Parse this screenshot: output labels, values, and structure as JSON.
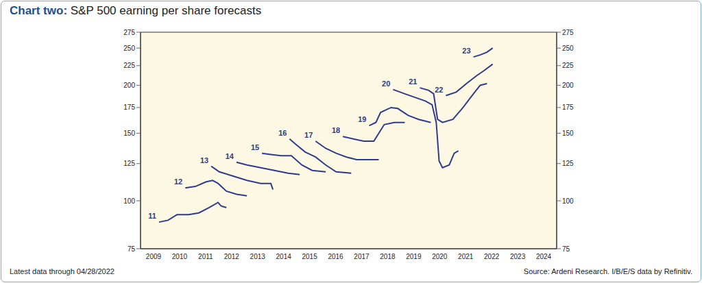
{
  "chart_data": {
    "type": "line",
    "title": "Chart two: S&P 500 earning per share forecasts",
    "annotations": [
      "Latest data through 04/28/2022",
      "Source: Ardeni Research. I/B/E/S data by Refinitiv."
    ],
    "log": "y",
    "xlim": [
      2009,
      2025
    ],
    "xticks": [
      {
        "value": 2009.5,
        "label": "2009"
      },
      {
        "value": 2010.5,
        "label": "2010"
      },
      {
        "value": 2011.5,
        "label": "2011"
      },
      {
        "value": 2012.5,
        "label": "2012"
      },
      {
        "value": 2013.5,
        "label": "2013"
      },
      {
        "value": 2014.5,
        "label": "2014"
      },
      {
        "value": 2015.5,
        "label": "2015"
      },
      {
        "value": 2016.5,
        "label": "2016"
      },
      {
        "value": 2017.5,
        "label": "2017"
      },
      {
        "value": 2018.5,
        "label": "2018"
      },
      {
        "value": 2019.5,
        "label": "2019"
      },
      {
        "value": 2020.5,
        "label": "2020"
      },
      {
        "value": 2021.5,
        "label": "2021"
      },
      {
        "value": 2022.5,
        "label": "2022"
      },
      {
        "value": 2023.5,
        "label": "2023"
      },
      {
        "value": 2024.5,
        "label": "2024"
      }
    ],
    "ylim": [
      75,
      275
    ],
    "yticks": [
      75,
      100,
      125,
      150,
      175,
      200,
      225,
      250,
      275
    ],
    "series": [
      {
        "name": "11",
        "color": "#2e3a8c",
        "x": [
          2009.71,
          2010.06,
          2010.4,
          2010.85,
          2011.24,
          2011.64,
          2011.98,
          2012.09,
          2012.3
        ],
        "values": [
          88,
          89,
          92,
          92,
          93,
          96,
          99,
          97,
          96
        ]
      },
      {
        "name": "12",
        "color": "#2e3a8c",
        "x": [
          2010.72,
          2011.11,
          2011.51,
          2011.77,
          2011.98,
          2012.3,
          2012.69,
          2013.09
        ],
        "values": [
          108,
          109,
          112,
          113,
          111,
          106,
          104,
          103
        ]
      },
      {
        "name": "13",
        "color": "#2e3a8c",
        "x": [
          2011.72,
          2012.03,
          2012.56,
          2013.09,
          2013.62,
          2014.01,
          2014.09
        ],
        "values": [
          123,
          119,
          116,
          113,
          111,
          111,
          107
        ]
      },
      {
        "name": "14",
        "color": "#2e3a8c",
        "x": [
          2012.69,
          2013.09,
          2013.62,
          2014.15,
          2014.67,
          2015.12
        ],
        "values": [
          126,
          124,
          122,
          120,
          118,
          117
        ]
      },
      {
        "name": "15",
        "color": "#2e3a8c",
        "x": [
          2013.67,
          2014.01,
          2014.41,
          2014.8,
          2015.2,
          2015.6,
          2016.12
        ],
        "values": [
          133,
          132,
          131,
          131,
          124,
          120,
          119
        ]
      },
      {
        "name": "16",
        "color": "#2e3a8c",
        "x": [
          2014.73,
          2014.99,
          2015.33,
          2015.73,
          2016.12,
          2016.52,
          2017.1
        ],
        "values": [
          145,
          140,
          134,
          130,
          124,
          119,
          118
        ]
      },
      {
        "name": "17",
        "color": "#2e3a8c",
        "x": [
          2015.73,
          2016.12,
          2016.52,
          2016.92,
          2017.31,
          2017.71,
          2018.16
        ],
        "values": [
          143,
          137,
          133,
          130,
          128,
          128,
          128
        ]
      },
      {
        "name": "18",
        "color": "#2e3a8c",
        "x": [
          2016.78,
          2017.18,
          2017.58,
          2017.97,
          2018.16,
          2018.37,
          2018.76,
          2019.16
        ],
        "values": [
          147,
          145,
          143,
          143,
          150,
          158,
          160,
          160
        ]
      },
      {
        "name": "19",
        "color": "#2e3a8c",
        "x": [
          2017.79,
          2018.05,
          2018.23,
          2018.63,
          2018.89,
          2019.29,
          2019.69,
          2020.16
        ],
        "values": [
          157,
          160,
          170,
          175,
          174,
          167,
          163,
          160
        ]
      },
      {
        "name": "20",
        "color": "#2e3a8c",
        "x": [
          2018.71,
          2019.16,
          2019.55,
          2019.95,
          2020.21,
          2020.37,
          2020.48,
          2020.61,
          2020.87,
          2021.06,
          2021.22
        ],
        "values": [
          195,
          190,
          186,
          182,
          178,
          160,
          127,
          122,
          124,
          133,
          135
        ]
      },
      {
        "name": "21",
        "color": "#2e3a8c",
        "x": [
          2019.74,
          2020.08,
          2020.27,
          2020.42,
          2020.61,
          2021.01,
          2021.4,
          2021.8,
          2022.06,
          2022.32
        ],
        "values": [
          197,
          194,
          190,
          163,
          160,
          163,
          175,
          190,
          200,
          202
        ]
      },
      {
        "name": "22",
        "color": "#2e3a8c",
        "x": [
          2020.74,
          2021.14,
          2021.53,
          2021.93,
          2022.19,
          2022.54
        ],
        "values": [
          188,
          192,
          202,
          212,
          218,
          227
        ]
      },
      {
        "name": "23",
        "color": "#2e3a8c",
        "x": [
          2021.8,
          2022.06,
          2022.32,
          2022.54
        ],
        "values": [
          237,
          240,
          244,
          250
        ]
      }
    ]
  }
}
